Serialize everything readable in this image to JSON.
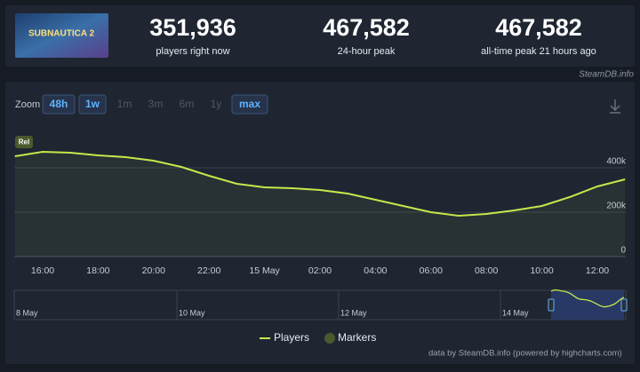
{
  "header": {
    "logo": "SUBNAUTICA 2",
    "stats": [
      {
        "value": "351,936",
        "label": "players right now"
      },
      {
        "value": "467,582",
        "label": "24-hour peak"
      },
      {
        "value": "467,582",
        "label": "all-time peak 21 hours ago"
      }
    ],
    "source": "SteamDB.info"
  },
  "zoom": {
    "label": "Zoom",
    "options": [
      "48h",
      "1w",
      "1m",
      "3m",
      "6m",
      "1y",
      "max"
    ],
    "active": [
      true,
      true,
      false,
      false,
      false,
      false,
      true
    ]
  },
  "chart_data": {
    "type": "area",
    "categories": [
      null,
      "16:00",
      null,
      "18:00",
      null,
      "20:00",
      null,
      "22:00",
      null,
      "15 May",
      null,
      "02:00",
      null,
      "04:00",
      null,
      "06:00",
      null,
      "08:00",
      null,
      "10:00",
      null,
      "12:00",
      null
    ],
    "series": [
      {
        "name": "Players",
        "color": "#c3e84b",
        "values": [
          452000,
          472000,
          468000,
          456000,
          448000,
          432000,
          404000,
          364000,
          328000,
          312000,
          308000,
          300000,
          284000,
          256000,
          228000,
          200000,
          184000,
          192000,
          208000,
          228000,
          268000,
          316000,
          348000
        ]
      }
    ],
    "markers": {
      "name": "Markers",
      "color": "#4a5a2e",
      "labels": [
        "Rel"
      ]
    },
    "ylim": [
      0,
      600000
    ],
    "yticks": [
      0,
      {
        "value": 200000,
        "label": "200k"
      },
      {
        "value": 400000,
        "label": "400k"
      }
    ],
    "grid": true,
    "navigator": {
      "labels": [
        "8 May",
        "10 May",
        "12 May",
        "14 May"
      ]
    },
    "credit": "data by SteamDB.info (powered by highcharts.com)"
  }
}
